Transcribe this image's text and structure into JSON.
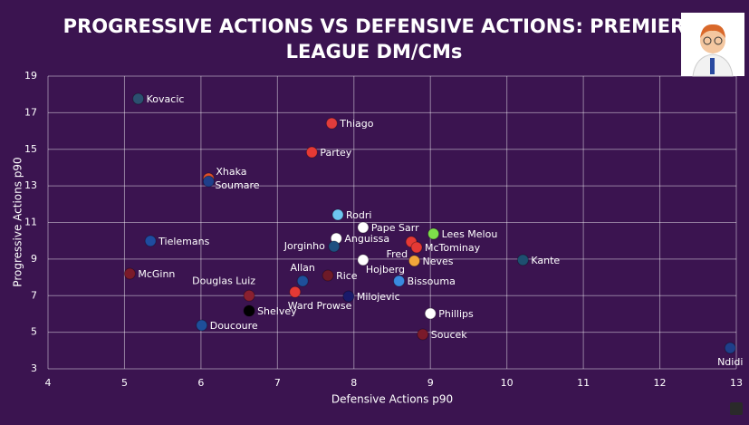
{
  "chart_data": {
    "type": "scatter",
    "title": [
      "PROGRESSIVE ACTIONS VS DEFENSIVE ACTIONS: PREMIER",
      "LEAGUE DM/CMs"
    ],
    "x_label": "Defensive Actions p90",
    "y_label": "Progressive Actions p90",
    "xlim": [
      4,
      13
    ],
    "xticks": [
      4,
      5,
      6,
      7,
      8,
      9,
      10,
      11,
      12,
      13
    ],
    "ylim": [
      3,
      19
    ],
    "yticks": [
      3,
      5,
      7,
      9,
      11,
      13,
      15,
      17,
      19
    ],
    "grid": true,
    "labels": [
      "Kovacic",
      "Thiago",
      "Partey",
      "Xhaka",
      "Soumare",
      "Rodri",
      "Pape Sarr",
      "Lees Melou",
      "Anguissa",
      "Fred",
      "McTominay",
      "Jorginho",
      "Tielemans",
      "Kante",
      "Hojberg",
      "Neves",
      "McGinn",
      "Rice",
      "Allan",
      "Bissouma",
      "Douglas Luiz",
      "Ward Prowse",
      "Milojevic",
      "Shelvey",
      "Phillips",
      "Doucoure",
      "Soucek",
      "Ndidi"
    ],
    "x": [
      5.18,
      7.71,
      7.45,
      6.1,
      6.1,
      7.79,
      8.12,
      9.04,
      7.77,
      8.75,
      8.82,
      7.74,
      5.34,
      10.21,
      8.12,
      8.79,
      5.07,
      7.66,
      7.33,
      8.59,
      6.63,
      7.23,
      7.93,
      6.63,
      9.0,
      6.01,
      8.9,
      12.92
    ],
    "y": [
      17.76,
      16.42,
      14.84,
      13.4,
      13.25,
      11.42,
      10.73,
      10.38,
      10.13,
      9.94,
      9.64,
      9.69,
      9.99,
      8.95,
      8.95,
      8.9,
      8.2,
      8.1,
      7.8,
      7.8,
      7.0,
      7.2,
      6.96,
      6.17,
      6.02,
      5.38,
      4.88,
      4.14
    ],
    "colors": [
      "#2c5070",
      "#e23c3c",
      "#e53935",
      "#e0502a",
      "#1f3f8a",
      "#6ec6f0",
      "#ffffff",
      "#7ee04a",
      "#ffffff",
      "#e53935",
      "#e53935",
      "#1e4f80",
      "#1f4ca0",
      "#1e4f70",
      "#ffffff",
      "#f2a63a",
      "#7a1a2a",
      "#6e1a28",
      "#1e4f9a",
      "#3a8ae0",
      "#8a2030",
      "#e53935",
      "#1a1a6a",
      "#000000",
      "#ffffff",
      "#1e4f9a",
      "#7a1a2a",
      "#1f3f8a"
    ]
  }
}
